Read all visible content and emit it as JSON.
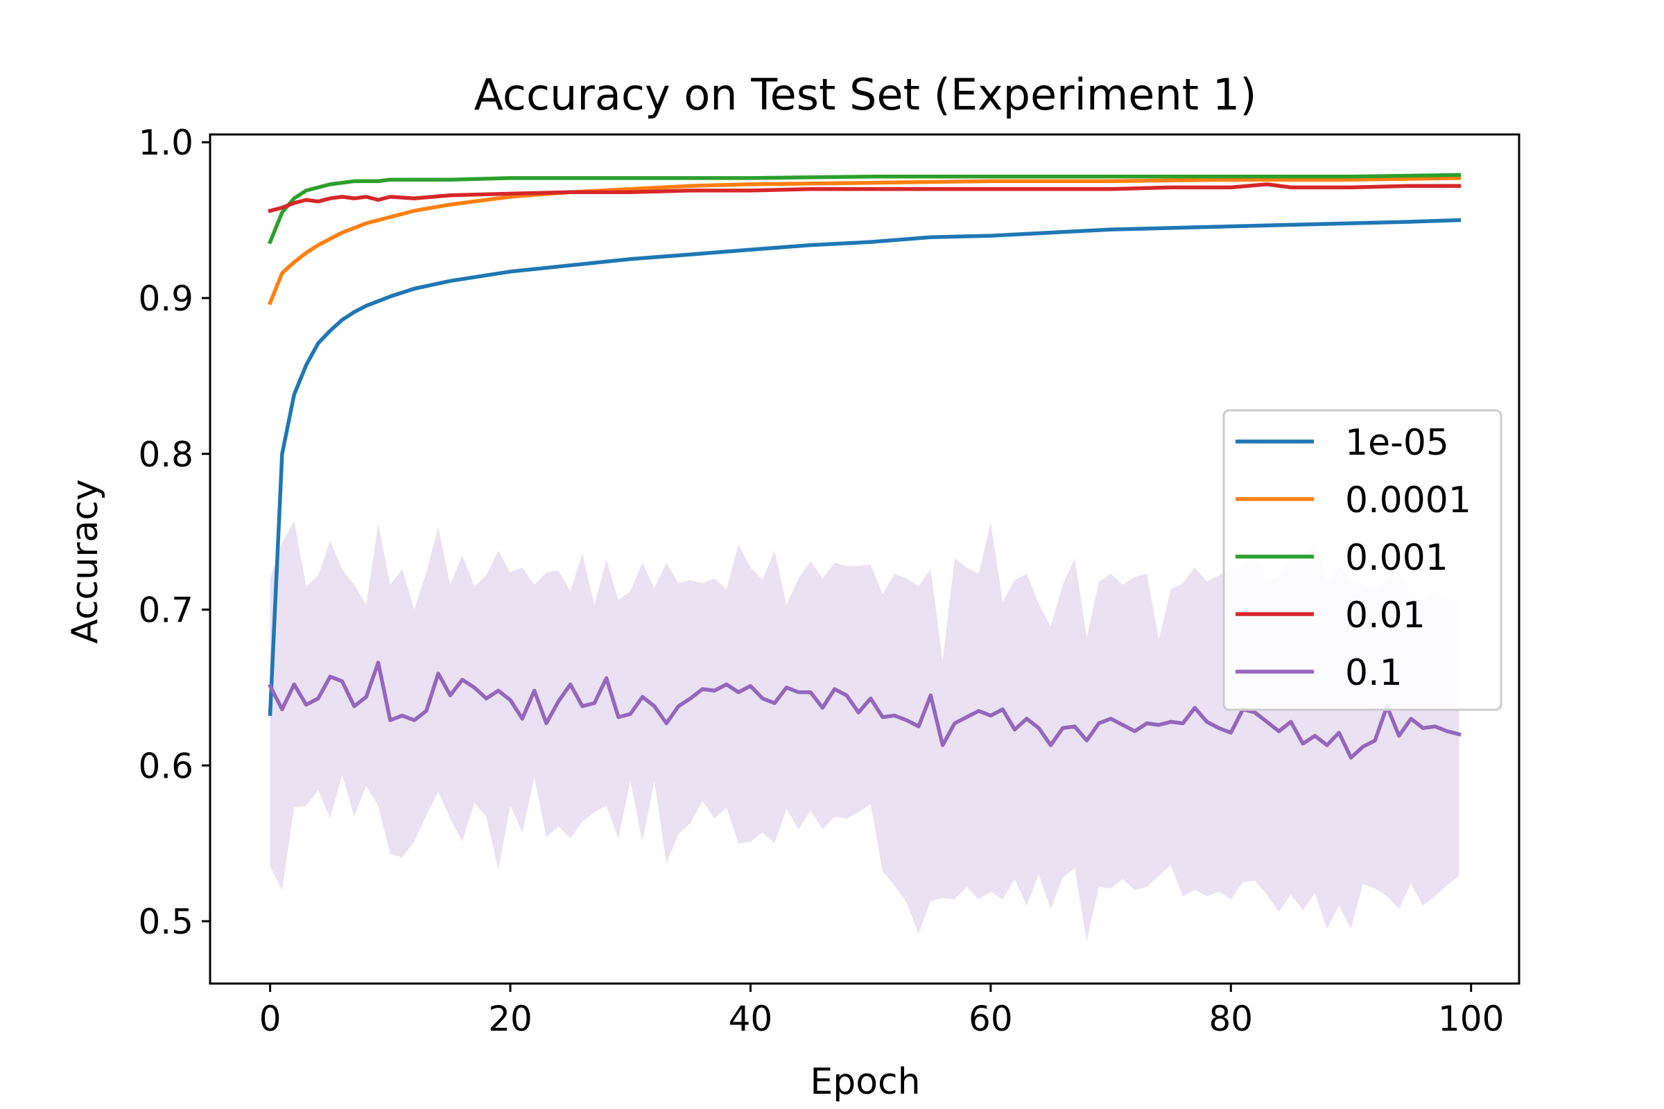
{
  "chart_data": {
    "type": "line",
    "title": "Accuracy on Test Set (Experiment 1)",
    "xlabel": "Epoch",
    "ylabel": "Accuracy",
    "xlim": [
      -5,
      104
    ],
    "ylim": [
      0.46,
      1.005
    ],
    "xticks": [
      0,
      20,
      40,
      60,
      80,
      100
    ],
    "xtick_labels": [
      "0",
      "20",
      "40",
      "60",
      "80",
      "100"
    ],
    "yticks": [
      0.5,
      0.6,
      0.7,
      0.8,
      0.9,
      1.0
    ],
    "ytick_labels": [
      "0.5",
      "0.6",
      "0.7",
      "0.8",
      "0.9",
      "1.0"
    ],
    "grid": false,
    "legend": {
      "placement": "center-right"
    },
    "series": [
      {
        "name": "1e-05",
        "color": "#1f77b4",
        "x": [
          0,
          1,
          2,
          3,
          4,
          5,
          6,
          7,
          8,
          9,
          10,
          12,
          15,
          20,
          25,
          30,
          35,
          40,
          45,
          50,
          55,
          60,
          65,
          70,
          75,
          80,
          85,
          90,
          95,
          99
        ],
        "values": [
          0.633,
          0.8,
          0.838,
          0.857,
          0.871,
          0.879,
          0.886,
          0.891,
          0.895,
          0.898,
          0.901,
          0.906,
          0.911,
          0.917,
          0.921,
          0.925,
          0.928,
          0.931,
          0.934,
          0.936,
          0.939,
          0.94,
          0.942,
          0.944,
          0.945,
          0.946,
          0.947,
          0.948,
          0.949,
          0.95
        ],
        "band": null
      },
      {
        "name": "0.0001",
        "color": "#ff7f0e",
        "x": [
          0,
          1,
          2,
          3,
          4,
          5,
          6,
          7,
          8,
          9,
          10,
          12,
          15,
          20,
          25,
          30,
          35,
          40,
          50,
          60,
          70,
          80,
          90,
          99
        ],
        "values": [
          0.897,
          0.916,
          0.923,
          0.929,
          0.934,
          0.938,
          0.942,
          0.945,
          0.948,
          0.95,
          0.952,
          0.956,
          0.96,
          0.965,
          0.968,
          0.97,
          0.972,
          0.973,
          0.974,
          0.975,
          0.975,
          0.976,
          0.976,
          0.977
        ],
        "band": null
      },
      {
        "name": "0.001",
        "color": "#2ca02c",
        "x": [
          0,
          1,
          2,
          3,
          4,
          5,
          6,
          7,
          8,
          9,
          10,
          12,
          15,
          20,
          25,
          30,
          35,
          40,
          50,
          60,
          70,
          80,
          90,
          99
        ],
        "values": [
          0.936,
          0.955,
          0.964,
          0.969,
          0.971,
          0.973,
          0.974,
          0.975,
          0.975,
          0.975,
          0.976,
          0.976,
          0.976,
          0.977,
          0.977,
          0.977,
          0.977,
          0.977,
          0.978,
          0.978,
          0.978,
          0.978,
          0.978,
          0.979
        ],
        "band": null
      },
      {
        "name": "0.01",
        "color": "#d62728",
        "x": [
          0,
          1,
          2,
          3,
          4,
          5,
          6,
          7,
          8,
          9,
          10,
          12,
          15,
          20,
          25,
          30,
          35,
          40,
          45,
          50,
          55,
          60,
          65,
          70,
          75,
          80,
          83,
          85,
          90,
          95,
          99
        ],
        "values": [
          0.956,
          0.958,
          0.961,
          0.963,
          0.962,
          0.964,
          0.965,
          0.964,
          0.965,
          0.963,
          0.965,
          0.964,
          0.966,
          0.967,
          0.968,
          0.968,
          0.969,
          0.969,
          0.97,
          0.97,
          0.97,
          0.97,
          0.97,
          0.97,
          0.971,
          0.971,
          0.973,
          0.971,
          0.971,
          0.972,
          0.972
        ],
        "band": null
      },
      {
        "name": "0.1",
        "color": "#9467bd",
        "x": [
          0,
          1,
          2,
          3,
          4,
          5,
          6,
          7,
          8,
          9,
          10,
          11,
          12,
          13,
          14,
          15,
          16,
          17,
          18,
          19,
          20,
          21,
          22,
          23,
          24,
          25,
          26,
          27,
          28,
          29,
          30,
          31,
          32,
          33,
          34,
          35,
          36,
          37,
          38,
          39,
          40,
          41,
          42,
          43,
          44,
          45,
          46,
          47,
          48,
          49,
          50,
          51,
          52,
          53,
          54,
          55,
          56,
          57,
          58,
          59,
          60,
          61,
          62,
          63,
          64,
          65,
          66,
          67,
          68,
          69,
          70,
          71,
          72,
          73,
          74,
          75,
          76,
          77,
          78,
          79,
          80,
          81,
          82,
          83,
          84,
          85,
          86,
          87,
          88,
          89,
          90,
          91,
          92,
          93,
          94,
          95,
          96,
          97,
          98,
          99
        ],
        "values": [
          0.651,
          0.636,
          0.652,
          0.639,
          0.643,
          0.657,
          0.654,
          0.638,
          0.644,
          0.666,
          0.629,
          0.632,
          0.629,
          0.635,
          0.659,
          0.645,
          0.655,
          0.65,
          0.643,
          0.648,
          0.642,
          0.63,
          0.648,
          0.627,
          0.641,
          0.652,
          0.638,
          0.64,
          0.656,
          0.631,
          0.633,
          0.644,
          0.638,
          0.627,
          0.638,
          0.643,
          0.649,
          0.648,
          0.652,
          0.647,
          0.651,
          0.643,
          0.64,
          0.65,
          0.647,
          0.647,
          0.637,
          0.649,
          0.645,
          0.634,
          0.643,
          0.631,
          0.632,
          0.629,
          0.625,
          0.645,
          0.613,
          0.627,
          0.631,
          0.635,
          0.632,
          0.636,
          0.623,
          0.63,
          0.624,
          0.613,
          0.624,
          0.625,
          0.616,
          0.627,
          0.63,
          0.626,
          0.622,
          0.627,
          0.626,
          0.628,
          0.627,
          0.637,
          0.628,
          0.624,
          0.621,
          0.636,
          0.634,
          0.628,
          0.622,
          0.628,
          0.614,
          0.619,
          0.613,
          0.621,
          0.605,
          0.612,
          0.616,
          0.638,
          0.619,
          0.63,
          0.624,
          0.625,
          0.622,
          0.62
        ],
        "band": {
          "upper": [
            0.72,
            0.743,
            0.757,
            0.715,
            0.722,
            0.744,
            0.726,
            0.716,
            0.703,
            0.755,
            0.716,
            0.726,
            0.7,
            0.724,
            0.753,
            0.716,
            0.735,
            0.715,
            0.722,
            0.738,
            0.724,
            0.727,
            0.716,
            0.724,
            0.725,
            0.712,
            0.736,
            0.703,
            0.732,
            0.706,
            0.712,
            0.73,
            0.714,
            0.73,
            0.717,
            0.719,
            0.717,
            0.72,
            0.713,
            0.742,
            0.727,
            0.719,
            0.738,
            0.703,
            0.72,
            0.731,
            0.72,
            0.73,
            0.728,
            0.728,
            0.729,
            0.71,
            0.723,
            0.72,
            0.715,
            0.726,
            0.667,
            0.733,
            0.727,
            0.723,
            0.756,
            0.705,
            0.719,
            0.723,
            0.704,
            0.689,
            0.716,
            0.733,
            0.682,
            0.718,
            0.723,
            0.716,
            0.721,
            0.723,
            0.681,
            0.713,
            0.717,
            0.727,
            0.718,
            0.722,
            0.727,
            0.728,
            0.738,
            0.719,
            0.721,
            0.735,
            0.733,
            0.745,
            0.717,
            0.727,
            0.72,
            0.716,
            0.713,
            0.72,
            0.725,
            0.71,
            0.706,
            0.713,
            0.707,
            0.705
          ],
          "lower": [
            0.535,
            0.52,
            0.573,
            0.574,
            0.584,
            0.566,
            0.594,
            0.567,
            0.587,
            0.574,
            0.543,
            0.541,
            0.551,
            0.568,
            0.583,
            0.566,
            0.551,
            0.576,
            0.567,
            0.533,
            0.574,
            0.557,
            0.592,
            0.554,
            0.561,
            0.553,
            0.564,
            0.57,
            0.574,
            0.553,
            0.59,
            0.551,
            0.59,
            0.537,
            0.556,
            0.563,
            0.577,
            0.566,
            0.573,
            0.55,
            0.551,
            0.557,
            0.55,
            0.572,
            0.559,
            0.571,
            0.559,
            0.567,
            0.566,
            0.57,
            0.575,
            0.532,
            0.523,
            0.512,
            0.492,
            0.513,
            0.515,
            0.514,
            0.522,
            0.514,
            0.519,
            0.514,
            0.527,
            0.51,
            0.53,
            0.508,
            0.528,
            0.534,
            0.487,
            0.522,
            0.521,
            0.527,
            0.52,
            0.522,
            0.529,
            0.536,
            0.516,
            0.52,
            0.516,
            0.519,
            0.514,
            0.525,
            0.526,
            0.517,
            0.506,
            0.517,
            0.507,
            0.518,
            0.495,
            0.51,
            0.495,
            0.524,
            0.521,
            0.516,
            0.508,
            0.524,
            0.51,
            0.516,
            0.523,
            0.529
          ]
        }
      }
    ]
  }
}
